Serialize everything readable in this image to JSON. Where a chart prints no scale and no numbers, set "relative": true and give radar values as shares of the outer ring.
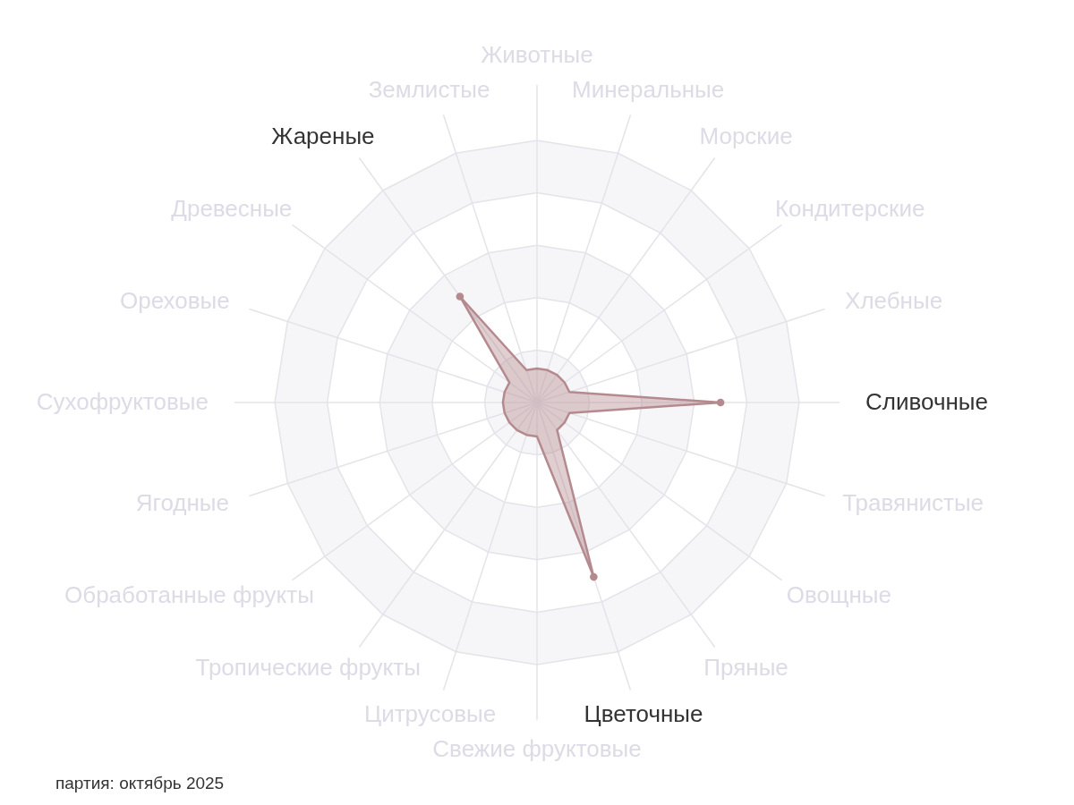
{
  "chart_data": {
    "type": "radar",
    "relative": true,
    "categories": [
      "Животные",
      "Минеральные",
      "Морские",
      "Кондитерские",
      "Хлебные",
      "Сливочные",
      "Травянистые",
      "Овощные",
      "Пряные",
      "Цветочные",
      "Свежие фруктовые",
      "Цитрусовые",
      "Тропические фрукты",
      "Обработанные фрукты",
      "Ягодные",
      "Сухофруктовые",
      "Ореховые",
      "Древесные",
      "Жареные",
      "Землистые"
    ],
    "series": [
      {
        "color": "#b48a8e",
        "values": [
          0.13,
          0.13,
          0.13,
          0.13,
          0.13,
          0.7,
          0.13,
          0.13,
          0.13,
          0.7,
          0.13,
          0.13,
          0.13,
          0.13,
          0.13,
          0.13,
          0.13,
          0.13,
          0.5,
          0.13
        ]
      }
    ],
    "grid": true,
    "marker": "circle",
    "annotations": [
      "партия: октябрь 2025"
    ]
  }
}
